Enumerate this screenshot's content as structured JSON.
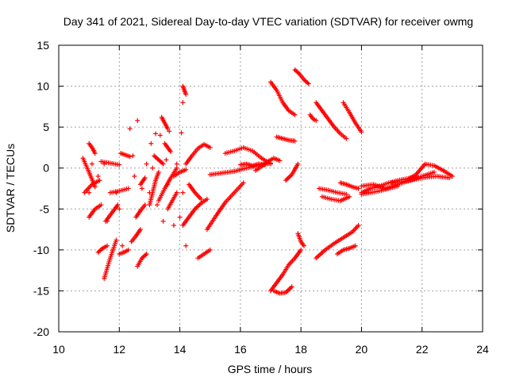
{
  "chart_data": {
    "type": "scatter",
    "title": "Day 341 of 2021, Sidereal Day-to-day VTEC variation (SDTVAR) for receiver owmg",
    "xlabel": "GPS time / hours",
    "ylabel": "SDTVAR / TECUs",
    "xlim": [
      10,
      24
    ],
    "ylim": [
      -20,
      15
    ],
    "xticks": [
      10,
      12,
      14,
      16,
      18,
      20,
      22,
      24
    ],
    "yticks": [
      -20,
      -15,
      -10,
      -5,
      0,
      5,
      10,
      15
    ],
    "xtick_labels": [
      "10",
      "12",
      "14",
      "16",
      "18",
      "20",
      "22",
      "24"
    ],
    "ytick_labels": [
      "-20",
      "-15",
      "-10",
      "-5",
      "0",
      "5",
      "10",
      "15"
    ],
    "grid": true,
    "marker": "+",
    "color": "#ff0000",
    "segments": [
      {
        "x": [
          10.8,
          11.0,
          11.2
        ],
        "y": [
          1.2,
          -0.5,
          -2.3
        ]
      },
      {
        "x": [
          10.85,
          11.1,
          11.35
        ],
        "y": [
          -3.0,
          -2.0,
          -1.5
        ]
      },
      {
        "x": [
          11.0,
          11.1,
          11.2
        ],
        "y": [
          3.0,
          2.5,
          1.8
        ]
      },
      {
        "x": [
          11.0,
          11.2,
          11.4
        ],
        "y": [
          -6.0,
          -5.0,
          -4.5
        ]
      },
      {
        "x": [
          11.3,
          11.45,
          11.6
        ],
        "y": [
          -10.3,
          -9.8,
          -9.5
        ]
      },
      {
        "x": [
          11.5,
          11.7,
          11.9
        ],
        "y": [
          -13.5,
          -11.0,
          -8.8
        ]
      },
      {
        "x": [
          11.4,
          11.7,
          12.0
        ],
        "y": [
          0.8,
          0.6,
          0.4
        ]
      },
      {
        "x": [
          11.55,
          11.75,
          11.95
        ],
        "y": [
          -6.5,
          -5.5,
          -4.5
        ]
      },
      {
        "x": [
          11.7,
          12.0,
          12.3
        ],
        "y": [
          -3.0,
          -2.8,
          -2.5
        ]
      },
      {
        "x": [
          12.05,
          12.2,
          12.35
        ],
        "y": [
          1.8,
          1.6,
          1.4
        ]
      },
      {
        "x": [
          12.0,
          12.15,
          12.3
        ],
        "y": [
          -10.5,
          -10.3,
          -10.0
        ]
      },
      {
        "x": [
          12.4,
          12.55,
          12.7
        ],
        "y": [
          -9.0,
          -8.3,
          -7.5
        ]
      },
      {
        "x": [
          12.55,
          12.7,
          12.85
        ],
        "y": [
          -6.0,
          -5.2,
          -4.5
        ]
      },
      {
        "x": [
          12.6,
          12.75,
          12.9
        ],
        "y": [
          -12.0,
          -11.0,
          -10.5
        ]
      },
      {
        "x": [
          12.7,
          12.85
        ],
        "y": [
          -2.0,
          -1.2
        ]
      },
      {
        "x": [
          13.0,
          13.1,
          13.2,
          13.3
        ],
        "y": [
          -4.5,
          -3.0,
          -1.5,
          -0.5
        ]
      },
      {
        "x": [
          13.15,
          13.3,
          13.45
        ],
        "y": [
          1.5,
          1.0,
          0.5
        ]
      },
      {
        "x": [
          13.4,
          13.5,
          13.6
        ],
        "y": [
          6.2,
          5.5,
          4.8
        ]
      },
      {
        "x": [
          13.5,
          13.6,
          13.7
        ],
        "y": [
          3.0,
          2.5,
          2.0
        ]
      },
      {
        "x": [
          13.3,
          13.5,
          13.7,
          13.9
        ],
        "y": [
          -4.0,
          -2.5,
          -1.2,
          0.0
        ]
      },
      {
        "x": [
          13.6,
          13.75,
          13.9
        ],
        "y": [
          -5.0,
          -4.0,
          -3.0
        ]
      },
      {
        "x": [
          13.8,
          14.0,
          14.2
        ],
        "y": [
          -1.0,
          -0.5,
          -0.2
        ]
      },
      {
        "x": [
          14.1,
          14.15,
          14.2
        ],
        "y": [
          10.0,
          9.5,
          9.0
        ]
      },
      {
        "x": [
          14.1,
          14.3,
          14.5,
          14.7,
          14.9
        ],
        "y": [
          -7.0,
          -6.0,
          -5.0,
          -4.3,
          -3.8
        ]
      },
      {
        "x": [
          14.2,
          14.4,
          14.6,
          14.8,
          15.0
        ],
        "y": [
          0.5,
          1.5,
          2.4,
          2.9,
          2.5
        ]
      },
      {
        "x": [
          14.3,
          14.5,
          14.7
        ],
        "y": [
          -2.0,
          -3.0,
          -3.8
        ]
      },
      {
        "x": [
          14.6,
          14.8,
          15.0
        ],
        "y": [
          -11.0,
          -10.5,
          -10.0
        ]
      },
      {
        "x": [
          14.9,
          15.2,
          15.5,
          15.8,
          16.1
        ],
        "y": [
          -7.5,
          -5.8,
          -4.2,
          -3.0,
          -1.8
        ]
      },
      {
        "x": [
          15.0,
          15.4,
          15.8,
          16.2,
          16.6,
          17.0
        ],
        "y": [
          -0.8,
          -0.6,
          -0.4,
          0.0,
          0.3,
          0.6
        ]
      },
      {
        "x": [
          15.5,
          15.8,
          16.1,
          16.4,
          16.7,
          17.0
        ],
        "y": [
          1.8,
          2.1,
          2.5,
          2.1,
          1.2,
          0.5
        ]
      },
      {
        "x": [
          16.0,
          16.2,
          16.4,
          16.6,
          16.8
        ],
        "y": [
          0.4,
          0.5,
          0.3,
          0.5,
          0.4
        ]
      },
      {
        "x": [
          16.5,
          16.7,
          16.9,
          17.1,
          17.3
        ],
        "y": [
          -0.3,
          0.2,
          0.8,
          1.2,
          0.9
        ]
      },
      {
        "x": [
          17.0,
          17.2,
          17.4,
          17.6,
          17.8
        ],
        "y": [
          10.5,
          9.5,
          8.0,
          7.0,
          6.5
        ]
      },
      {
        "x": [
          17.2,
          17.4,
          17.6,
          17.8
        ],
        "y": [
          3.8,
          3.6,
          3.4,
          3.3
        ]
      },
      {
        "x": [
          17.5,
          17.7,
          17.9
        ],
        "y": [
          -1.5,
          -0.8,
          0.5
        ]
      },
      {
        "x": [
          17.0,
          17.2,
          17.4,
          17.6,
          17.8,
          18.0
        ],
        "y": [
          -15.0,
          -14.0,
          -13.0,
          -11.8,
          -11.0,
          -10.0
        ]
      },
      {
        "x": [
          17.1,
          17.3,
          17.5,
          17.7
        ],
        "y": [
          -15.0,
          -15.3,
          -15.2,
          -14.5
        ]
      },
      {
        "x": [
          17.8,
          17.95,
          18.1,
          18.25
        ],
        "y": [
          12.0,
          11.5,
          10.8,
          10.3
        ]
      },
      {
        "x": [
          17.9,
          18.0,
          18.1
        ],
        "y": [
          -8.0,
          -9.0,
          -9.5
        ]
      },
      {
        "x": [
          18.3,
          18.4,
          18.5
        ],
        "y": [
          6.5,
          6.0,
          5.8
        ]
      },
      {
        "x": [
          18.5,
          18.7,
          18.9,
          19.1,
          19.3,
          19.5
        ],
        "y": [
          8.0,
          7.0,
          6.0,
          5.0,
          4.2,
          3.6
        ]
      },
      {
        "x": [
          18.5,
          18.8,
          19.1,
          19.4,
          19.7,
          19.9
        ],
        "y": [
          -11.0,
          -10.0,
          -9.2,
          -8.5,
          -7.8,
          -7.0
        ]
      },
      {
        "x": [
          18.6,
          18.9,
          19.2,
          19.5
        ],
        "y": [
          -2.5,
          -2.7,
          -3.0,
          -3.2
        ]
      },
      {
        "x": [
          18.7,
          19.0,
          19.3,
          19.6
        ],
        "y": [
          -3.5,
          -3.8,
          -4.0,
          -3.5
        ]
      },
      {
        "x": [
          19.2,
          19.4,
          19.6,
          19.8
        ],
        "y": [
          -10.5,
          -10.0,
          -9.8,
          -9.5
        ]
      },
      {
        "x": [
          19.3,
          19.5,
          19.7,
          19.9
        ],
        "y": [
          -1.8,
          -2.0,
          -2.3,
          -2.5
        ]
      },
      {
        "x": [
          19.4,
          19.6,
          19.8,
          20.0
        ],
        "y": [
          8.0,
          6.8,
          5.5,
          4.4
        ]
      },
      {
        "x": [
          20.0,
          20.3,
          20.6,
          20.9,
          21.2,
          21.5,
          21.8
        ],
        "y": [
          -3.0,
          -2.5,
          -2.2,
          -1.8,
          -1.5,
          -1.3,
          -1.0
        ]
      },
      {
        "x": [
          20.0,
          20.4,
          20.8,
          21.2,
          21.6,
          22.0,
          22.4
        ],
        "y": [
          -2.2,
          -2.0,
          -2.5,
          -2.0,
          -1.5,
          -1.0,
          -0.5
        ]
      },
      {
        "x": [
          20.0,
          20.3,
          20.6,
          20.9,
          21.2
        ],
        "y": [
          -3.2,
          -3.0,
          -2.8,
          -2.5,
          -2.2
        ]
      },
      {
        "x": [
          21.5,
          21.8,
          22.1,
          22.4,
          22.7,
          23.0
        ],
        "y": [
          -1.5,
          -0.8,
          0.5,
          0.3,
          -0.3,
          -1.0
        ]
      },
      {
        "x": [
          21.0,
          21.5,
          22.0,
          22.5,
          22.9
        ],
        "y": [
          -1.8,
          -1.6,
          -1.2,
          -1.0,
          -1.2
        ]
      }
    ],
    "scattered": {
      "x": [
        11.0,
        11.1,
        11.3,
        11.5,
        11.6,
        11.9,
        12.0,
        12.1,
        12.35,
        12.45,
        12.5,
        12.6,
        12.75,
        12.9,
        13.0,
        13.05,
        13.1,
        13.2,
        13.25,
        13.35,
        13.45,
        13.55,
        13.6,
        13.65,
        13.8,
        13.9,
        14.0,
        14.05,
        14.1,
        14.1,
        14.2
      ],
      "y": [
        -3.0,
        0.5,
        -1.0,
        0.5,
        -6.5,
        -3.0,
        -5.0,
        -9.5,
        4.8,
        1.5,
        -1.0,
        5.8,
        -2.5,
        0.5,
        -3.0,
        3.0,
        0.0,
        4.2,
        -4.5,
        4.0,
        -6.5,
        1.0,
        -2.0,
        4.5,
        -7.0,
        0.5,
        -6.0,
        4.3,
        8.0,
        -3.0,
        -9.5
      ]
    }
  }
}
